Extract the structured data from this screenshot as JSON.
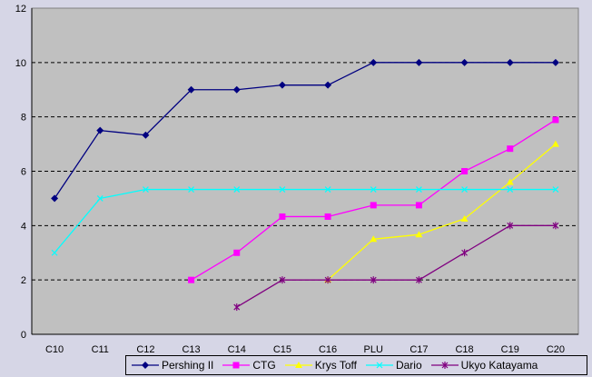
{
  "chart_data": {
    "type": "line",
    "title": "",
    "xlabel": "",
    "ylabel": "",
    "categories": [
      "C10",
      "C11",
      "C12",
      "C13",
      "C14",
      "C15",
      "C16",
      "PLU",
      "C17",
      "C18",
      "C19",
      "C20"
    ],
    "ylim": [
      0,
      12
    ],
    "yticks": [
      0,
      2,
      4,
      6,
      8,
      10,
      12
    ],
    "grid": true,
    "legend": "bottom",
    "series": [
      {
        "name": "Pershing II",
        "color": "#000080",
        "marker": "diamond",
        "values": [
          5,
          7.5,
          7.33,
          9,
          9,
          9.17,
          9.17,
          10,
          10,
          10,
          10,
          10
        ]
      },
      {
        "name": "CTG",
        "color": "#ff00ff",
        "marker": "square",
        "values": [
          null,
          null,
          null,
          2,
          3,
          4.33,
          4.33,
          4.75,
          4.75,
          6,
          6.83,
          7.89
        ]
      },
      {
        "name": "Krys Toff",
        "color": "#ffff00",
        "marker": "triangle",
        "values": [
          null,
          null,
          null,
          null,
          null,
          null,
          2,
          3.5,
          3.67,
          4.25,
          5.6,
          7
        ]
      },
      {
        "name": "Dario",
        "color": "#00ffff",
        "marker": "x",
        "values": [
          3,
          5,
          5.33,
          5.33,
          5.33,
          5.33,
          5.33,
          5.33,
          5.33,
          5.33,
          5.33,
          5.33
        ]
      },
      {
        "name": "Ukyo Katayama",
        "color": "#800080",
        "marker": "star",
        "values": [
          null,
          null,
          null,
          null,
          1,
          2,
          2,
          2,
          2,
          3,
          4,
          4
        ]
      }
    ]
  }
}
